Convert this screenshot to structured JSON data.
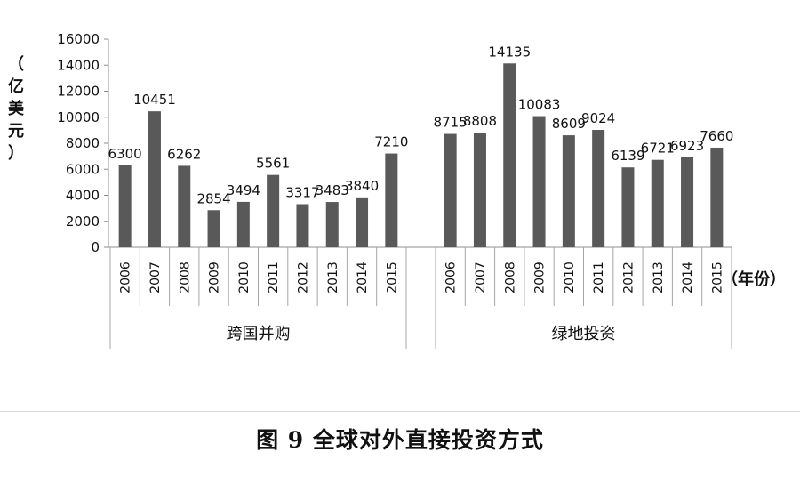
{
  "figure_caption": "图 9  全球对外直接投资方式",
  "chart_data": {
    "type": "bar",
    "title": "",
    "ylabel": "（亿美元）",
    "xlabel": "（年份）",
    "ylim": [
      0,
      16000
    ],
    "yticks": [
      "0",
      "2000",
      "4000",
      "6000",
      "8000",
      "10000",
      "12000",
      "14000",
      "16000"
    ],
    "grid": false,
    "bar_color": "#595959",
    "groups": [
      {
        "name": "跨国并购",
        "categories": [
          "2006",
          "2007",
          "2008",
          "2009",
          "2010",
          "2011",
          "2012",
          "2013",
          "2014",
          "2015"
        ],
        "values": [
          6300,
          10451,
          6262,
          2854,
          3494,
          5561,
          3317,
          3483,
          3840,
          7210
        ]
      },
      {
        "name": "绿地投资",
        "categories": [
          "2006",
          "2007",
          "2008",
          "2009",
          "2010",
          "2011",
          "2012",
          "2013",
          "2014",
          "2015"
        ],
        "values": [
          8715,
          8808,
          14135,
          10083,
          8609,
          9024,
          6139,
          6721,
          6923,
          7660
        ]
      }
    ]
  }
}
